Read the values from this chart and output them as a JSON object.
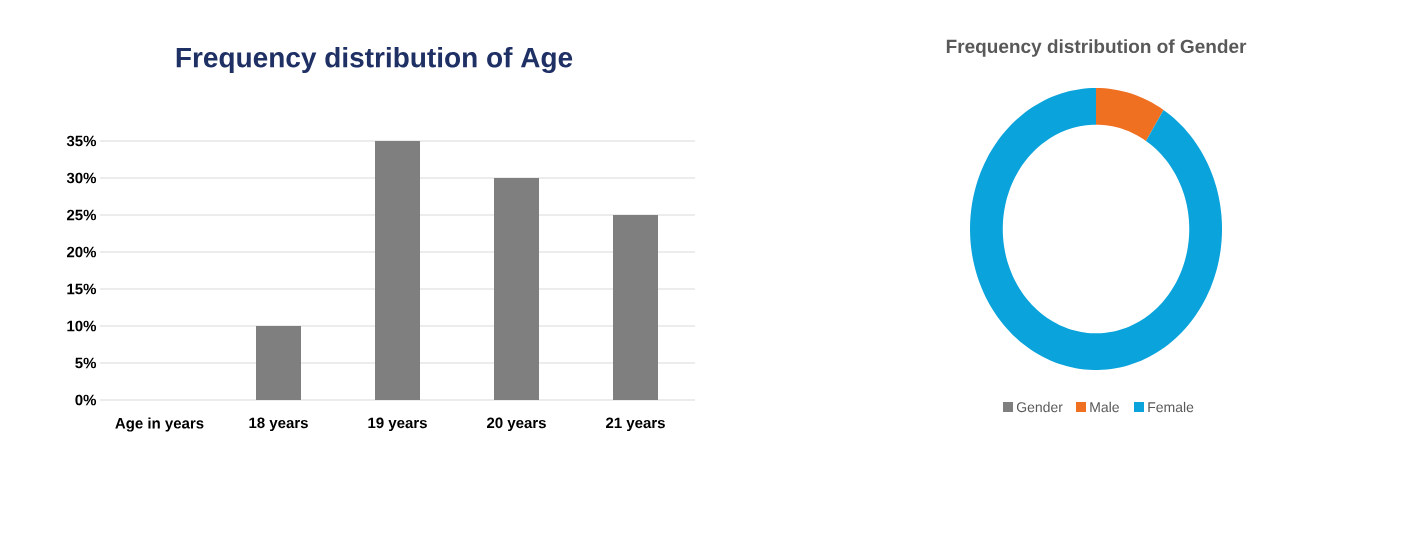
{
  "chart_data": [
    {
      "type": "bar",
      "title": "Frequency distribution of Age",
      "categories": [
        "Age in years",
        "18 years",
        "19 years",
        "20 years",
        "21 years"
      ],
      "values": [
        0,
        10,
        35,
        30,
        25
      ],
      "color": "#7f7f7f",
      "ylim": [
        0,
        35
      ],
      "yticks": [
        {
          "value": 0,
          "label": "0%"
        },
        {
          "value": 5,
          "label": "5%"
        },
        {
          "value": 10,
          "label": "10%"
        },
        {
          "value": 15,
          "label": "15%"
        },
        {
          "value": 20,
          "label": "20%"
        },
        {
          "value": 25,
          "label": "25%"
        },
        {
          "value": 30,
          "label": "30%"
        },
        {
          "value": 35,
          "label": "35%"
        }
      ],
      "grid": "y"
    },
    {
      "type": "donut",
      "title": "Frequency distribution of  Gender",
      "categories": [
        "Gender",
        "Male",
        "Female"
      ],
      "values": [
        0,
        9,
        91
      ],
      "colors": [
        "#7f7f7f",
        "#f07021",
        "#0aa3db"
      ],
      "legend": "bottom"
    }
  ]
}
